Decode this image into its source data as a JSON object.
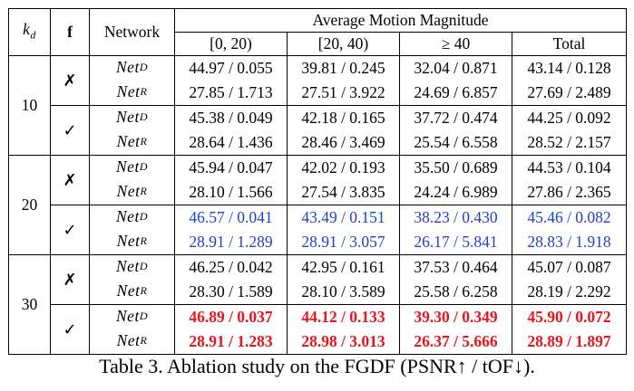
{
  "header": {
    "kd_label": "k",
    "kd_sub": "d",
    "f_label": "f",
    "network_label": "Network",
    "group_label": "Average Motion Magnitude",
    "ranges": [
      "[0, 20)",
      "[20, 40)",
      "≥ 40",
      "Total"
    ]
  },
  "rows": [
    {
      "net": "Net",
      "sup": "D",
      "vals": [
        "44.97 / 0.055",
        "39.81 / 0.245",
        "32.04 / 0.871",
        "43.14 / 0.128"
      ]
    },
    {
      "net": "Net",
      "sup": "R",
      "vals": [
        "27.85 / 1.713",
        "27.51 / 3.922",
        "24.69 / 6.857",
        "27.69 / 2.489"
      ]
    },
    {
      "net": "Net",
      "sup": "D",
      "vals": [
        "45.38 / 0.049",
        "42.18 / 0.165",
        "37.72 / 0.474",
        "44.25 / 0.092"
      ]
    },
    {
      "net": "Net",
      "sup": "R",
      "vals": [
        "28.64 / 1.436",
        "28.46 / 3.469",
        "25.54 / 6.558",
        "28.52 / 2.157"
      ]
    },
    {
      "net": "Net",
      "sup": "D",
      "vals": [
        "45.94 / 0.047",
        "42.02 / 0.193",
        "35.50 / 0.689",
        "44.53 / 0.104"
      ]
    },
    {
      "net": "Net",
      "sup": "R",
      "vals": [
        "28.10 / 1.566",
        "27.54 / 3.835",
        "24.24 / 6.989",
        "27.86 / 2.365"
      ]
    },
    {
      "net": "Net",
      "sup": "D",
      "vals": [
        "46.57 / 0.041",
        "43.49 / 0.151",
        "38.23 / 0.430",
        "45.46 / 0.082"
      ]
    },
    {
      "net": "Net",
      "sup": "R",
      "vals": [
        "28.91 / 1.289",
        "28.91 / 3.057",
        "26.17 / 5.841",
        "28.83 / 1.918"
      ]
    },
    {
      "net": "Net",
      "sup": "D",
      "vals": [
        "46.25 / 0.042",
        "42.95 / 0.161",
        "37.53 / 0.464",
        "45.07 / 0.087"
      ]
    },
    {
      "net": "Net",
      "sup": "R",
      "vals": [
        "28.30 / 1.589",
        "28.10 / 3.589",
        "25.58 / 6.258",
        "28.19 / 2.292"
      ]
    },
    {
      "net": "Net",
      "sup": "D",
      "vals": [
        "46.89 / 0.037",
        "44.12 / 0.133",
        "39.30 / 0.349",
        "45.90 / 0.072"
      ]
    },
    {
      "net": "Net",
      "sup": "R",
      "vals": [
        "28.91 / 1.283",
        "28.98 / 3.013",
        "26.37 / 5.666",
        "28.89 / 1.897"
      ]
    }
  ],
  "kd_values": [
    "10",
    "20",
    "30"
  ],
  "f_marks": [
    "✗",
    "✓",
    "✗",
    "✓",
    "✗",
    "✓"
  ],
  "highlight_colors": {
    "blue": "#1f3fcf",
    "red": "#e8141e"
  },
  "caption": "Table 3. Ablation study on the FGDF (PSNR↑ / tOF↓)."
}
